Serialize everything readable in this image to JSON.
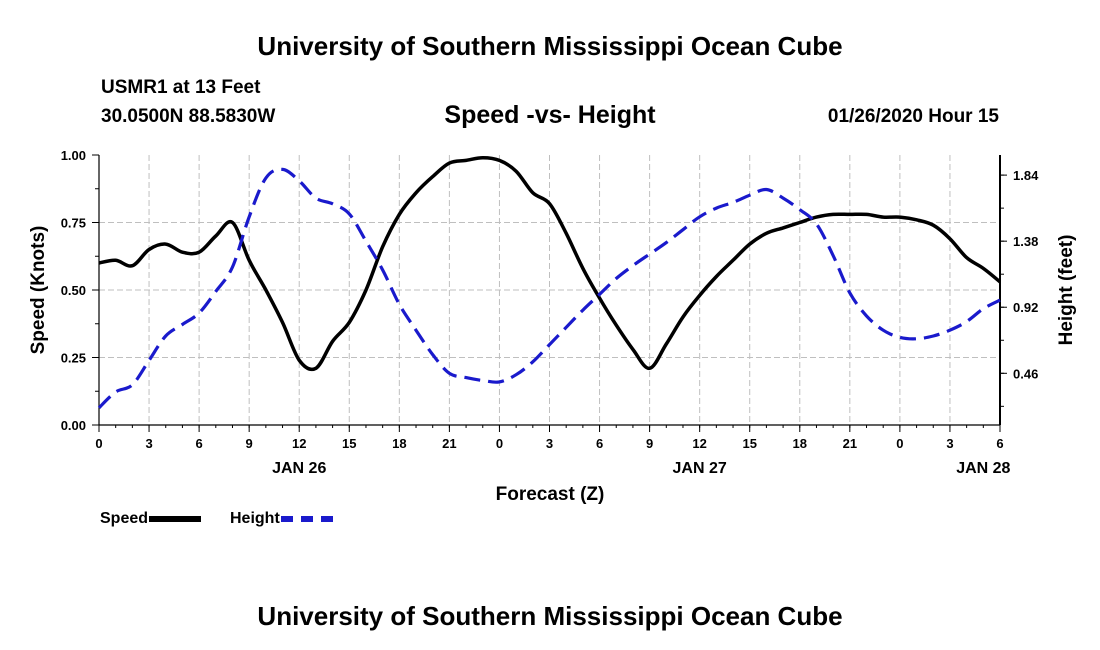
{
  "header": {
    "top_title": "University of Southern Mississippi Ocean Cube",
    "station": "USMR1 at 13 Feet",
    "coords": "30.0500N 88.5830W",
    "datetime": "01/26/2020 Hour 15"
  },
  "footer": {
    "bottom_title": "University of Southern Mississippi Ocean Cube"
  },
  "colors": {
    "speed": "#000000",
    "height": "#1a1acc",
    "grid": "#bfbfbf"
  },
  "chart_data": {
    "type": "line",
    "title": "Speed -vs- Height",
    "xlabel": "Forecast (Z)",
    "ylabel": "Speed (Knots)",
    "y2label": "Height (feet)",
    "x_unit": "hours",
    "xlim": [
      0,
      54
    ],
    "ylim": [
      0,
      1.0
    ],
    "y2lim": [
      0.1,
      1.98
    ],
    "x_tick_values": [
      0,
      3,
      6,
      9,
      12,
      15,
      18,
      21,
      24,
      27,
      30,
      33,
      36,
      39,
      42,
      45,
      48,
      51,
      54
    ],
    "x_tick_labels": [
      "0",
      "3",
      "6",
      "9",
      "12",
      "15",
      "18",
      "21",
      "0",
      "3",
      "6",
      "9",
      "12",
      "15",
      "18",
      "21",
      "0",
      "3",
      "6"
    ],
    "date_labels": [
      {
        "x": 12,
        "label": "JAN 26"
      },
      {
        "x": 36,
        "label": "JAN 27"
      },
      {
        "x": 53,
        "label": "JAN 28"
      }
    ],
    "y_ticks": [
      "0.00",
      "0.25",
      "0.50",
      "0.75",
      "1.00"
    ],
    "y_tick_values": [
      0,
      0.25,
      0.5,
      0.75,
      1.0
    ],
    "y2_ticks": [
      "0.46",
      "0.92",
      "1.38",
      "1.84"
    ],
    "y2_tick_values": [
      0.46,
      0.92,
      1.38,
      1.84
    ],
    "grid": true,
    "legend": "bottom-left",
    "series": [
      {
        "name": "Speed",
        "axis": "left",
        "style": "solid",
        "x": [
          0,
          1,
          2,
          3,
          4,
          5,
          6,
          7,
          8,
          9,
          10,
          11,
          12,
          13,
          14,
          15,
          16,
          17,
          18,
          19,
          20,
          21,
          22,
          23,
          24,
          25,
          26,
          27,
          28,
          29,
          30,
          31,
          32,
          33,
          34,
          35,
          36,
          37,
          38,
          39,
          40,
          41,
          42,
          43,
          44,
          45,
          46,
          47,
          48,
          49,
          50,
          51,
          52,
          53,
          54
        ],
        "values": [
          0.6,
          0.61,
          0.59,
          0.65,
          0.67,
          0.64,
          0.64,
          0.7,
          0.75,
          0.61,
          0.5,
          0.38,
          0.24,
          0.21,
          0.31,
          0.38,
          0.5,
          0.66,
          0.78,
          0.86,
          0.92,
          0.97,
          0.98,
          0.99,
          0.98,
          0.94,
          0.86,
          0.82,
          0.71,
          0.58,
          0.47,
          0.37,
          0.28,
          0.21,
          0.3,
          0.4,
          0.48,
          0.55,
          0.61,
          0.67,
          0.71,
          0.73,
          0.75,
          0.77,
          0.78,
          0.78,
          0.78,
          0.77,
          0.77,
          0.76,
          0.74,
          0.69,
          0.62,
          0.58,
          0.53
        ]
      },
      {
        "name": "Height",
        "axis": "right",
        "style": "dashed",
        "x": [
          0,
          1,
          2,
          3,
          4,
          5,
          6,
          7,
          8,
          9,
          10,
          11,
          12,
          13,
          14,
          15,
          16,
          17,
          18,
          19,
          20,
          21,
          22,
          23,
          24,
          25,
          26,
          27,
          28,
          29,
          30,
          31,
          32,
          33,
          34,
          35,
          36,
          37,
          38,
          39,
          40,
          41,
          42,
          43,
          44,
          45,
          46,
          47,
          48,
          49,
          50,
          51,
          52,
          53,
          54
        ],
        "values": [
          0.22,
          0.33,
          0.38,
          0.55,
          0.72,
          0.8,
          0.88,
          1.03,
          1.2,
          1.55,
          1.82,
          1.88,
          1.8,
          1.68,
          1.64,
          1.57,
          1.38,
          1.18,
          0.94,
          0.76,
          0.59,
          0.46,
          0.43,
          0.41,
          0.4,
          0.45,
          0.54,
          0.66,
          0.78,
          0.9,
          1.01,
          1.12,
          1.21,
          1.29,
          1.37,
          1.46,
          1.55,
          1.61,
          1.65,
          1.7,
          1.74,
          1.68,
          1.6,
          1.5,
          1.28,
          1.02,
          0.86,
          0.76,
          0.71,
          0.7,
          0.72,
          0.76,
          0.82,
          0.91,
          0.97
        ]
      }
    ]
  },
  "legend": {
    "speed_label": "Speed",
    "height_label": "Height"
  }
}
